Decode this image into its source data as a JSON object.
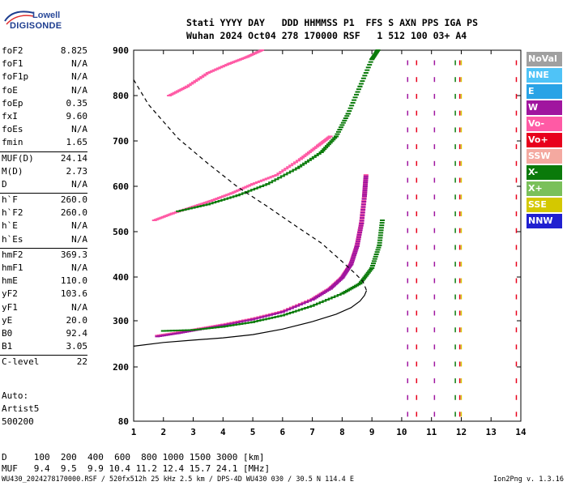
{
  "logo": {
    "line1": "Lowell",
    "line2": "DIGISONDE"
  },
  "header": {
    "row1": "Stati YYYY DAY   DDD HHMMSS P1  FFS S AXN PPS IGA PS",
    "row2": "Wuhan 2024 Oct04 278 170000 RSF   1 512 100 03+ A4"
  },
  "params": {
    "group1": [
      {
        "key": "foF2",
        "value": "8.825"
      },
      {
        "key": "foF1",
        "value": "N/A"
      },
      {
        "key": "foF1p",
        "value": "N/A"
      },
      {
        "key": "foE",
        "value": "N/A"
      },
      {
        "key": "foEp",
        "value": "0.35"
      },
      {
        "key": "fxI",
        "value": "9.60"
      },
      {
        "key": "foEs",
        "value": "N/A"
      },
      {
        "key": "fmin",
        "value": "1.65"
      }
    ],
    "group2": [
      {
        "key": "MUF(D)",
        "value": "24.14"
      },
      {
        "key": "M(D)",
        "value": "2.73"
      },
      {
        "key": "D",
        "value": "N/A"
      }
    ],
    "group3": [
      {
        "key": "h`F",
        "value": "260.0"
      },
      {
        "key": "h`F2",
        "value": "260.0"
      },
      {
        "key": "h`E",
        "value": "N/A"
      },
      {
        "key": "h`Es",
        "value": "N/A"
      }
    ],
    "group4": [
      {
        "key": "hmF2",
        "value": "369.3"
      },
      {
        "key": "hmF1",
        "value": "N/A"
      },
      {
        "key": "hmE",
        "value": "110.0"
      },
      {
        "key": "yF2",
        "value": "103.6"
      },
      {
        "key": "yF1",
        "value": "N/A"
      },
      {
        "key": "yE",
        "value": "20.0"
      },
      {
        "key": "B0",
        "value": "92.4"
      },
      {
        "key": "B1",
        "value": "3.05"
      }
    ],
    "group5": [
      {
        "key": "C-level",
        "value": "22"
      }
    ]
  },
  "notes": [
    "Auto:",
    "Artist5",
    "500200"
  ],
  "muf_table": {
    "row1": "D     100  200  400  600  800 1000 1500 3000 [km]",
    "row2": "MUF   9.4  9.5  9.9 10.4 11.2 12.4 15.7 24.1 [MHz]"
  },
  "footer": {
    "left": "WU430_2024278170000.RSF / 520fx512h 25 kHz 2.5 km / DPS-4D WU430 030 / 30.5 N 114.4 E",
    "right": "Ion2Png v. 1.3.16"
  },
  "legend": [
    {
      "label": "NoVal",
      "color": "#a0a0a0"
    },
    {
      "label": "NNE",
      "color": "#4fc3f7"
    },
    {
      "label": "E",
      "color": "#29a3e6"
    },
    {
      "label": "W",
      "color": "#a0159f"
    },
    {
      "label": "Vo-",
      "color": "#ff5aa5"
    },
    {
      "label": "Vo+",
      "color": "#e8001c"
    },
    {
      "label": "SSW",
      "color": "#f4a9a0"
    },
    {
      "label": "X-",
      "color": "#0a7a0a"
    },
    {
      "label": "X+",
      "color": "#7ac05a"
    },
    {
      "label": "SSE",
      "color": "#d4c800"
    },
    {
      "label": "NNW",
      "color": "#2020d0"
    }
  ],
  "chart_data": {
    "type": "scatter",
    "xlim": [
      1,
      14
    ],
    "ylim_label": "virtual height (km), nonlinear axis",
    "x_ticks": [
      "1",
      "2",
      "3",
      "4",
      "5",
      "6",
      "7",
      "8",
      "9",
      "10",
      "11",
      "12",
      "13",
      "14"
    ],
    "y_ticks": [
      "80",
      "200",
      "300",
      "400",
      "500",
      "600",
      "700",
      "800",
      "900"
    ],
    "y_tick_values": [
      80,
      200,
      300,
      400,
      500,
      600,
      700,
      800,
      900
    ],
    "series": [
      {
        "name": "Vo-",
        "color": "#ff5aa5",
        "points": [
          [
            1.8,
            268
          ],
          [
            2.5,
            275
          ],
          [
            3.2,
            283
          ],
          [
            4,
            292
          ],
          [
            5,
            305
          ],
          [
            6,
            322
          ],
          [
            7,
            350
          ],
          [
            7.6,
            375
          ],
          [
            8,
            400
          ],
          [
            8.3,
            430
          ],
          [
            8.5,
            470
          ],
          [
            8.65,
            520
          ],
          [
            8.75,
            580
          ],
          [
            8.8,
            625
          ]
        ]
      },
      {
        "name": "W",
        "color": "#a0159f",
        "points": [
          [
            1.8,
            266
          ],
          [
            2.5,
            273
          ],
          [
            3.2,
            281
          ],
          [
            4,
            290
          ],
          [
            5,
            303
          ],
          [
            6,
            320
          ],
          [
            7,
            348
          ],
          [
            7.6,
            373
          ],
          [
            8,
            398
          ],
          [
            8.3,
            428
          ],
          [
            8.5,
            468
          ],
          [
            8.65,
            518
          ],
          [
            8.75,
            578
          ],
          [
            8.8,
            622
          ]
        ]
      },
      {
        "name": "X-",
        "color": "#0a7a0a",
        "points": [
          [
            2,
            278
          ],
          [
            3,
            280
          ],
          [
            4,
            287
          ],
          [
            5,
            297
          ],
          [
            6,
            312
          ],
          [
            7,
            334
          ],
          [
            8,
            362
          ],
          [
            8.6,
            385
          ],
          [
            9,
            420
          ],
          [
            9.25,
            470
          ],
          [
            9.35,
            525
          ]
        ]
      },
      {
        "name": "Vo- (2F)",
        "color": "#ff5aa5",
        "points": [
          [
            1.7,
            525
          ],
          [
            2.3,
            540
          ],
          [
            3,
            555
          ],
          [
            3.6,
            568
          ],
          [
            4.3,
            585
          ],
          [
            5,
            605
          ],
          [
            5.8,
            625
          ],
          [
            6.6,
            660
          ],
          [
            7.2,
            690
          ],
          [
            7.6,
            710
          ]
        ]
      },
      {
        "name": "X- (2F)",
        "color": "#0a7a0a",
        "points": [
          [
            2.5,
            545
          ],
          [
            3.5,
            560
          ],
          [
            4.5,
            580
          ],
          [
            5.5,
            605
          ],
          [
            6.5,
            640
          ],
          [
            7.3,
            675
          ],
          [
            7.8,
            710
          ],
          [
            8.2,
            760
          ],
          [
            8.6,
            820
          ],
          [
            9,
            880
          ],
          [
            9.2,
            900
          ]
        ]
      },
      {
        "name": "Vo- (3F)",
        "color": "#ff5aa5",
        "points": [
          [
            2.2,
            800
          ],
          [
            2.8,
            820
          ],
          [
            3.5,
            850
          ],
          [
            4.2,
            870
          ],
          [
            4.8,
            885
          ],
          [
            5.3,
            900
          ]
        ]
      }
    ],
    "profile": {
      "name": "true-height",
      "style": "solid",
      "points": [
        [
          1,
          245
        ],
        [
          2,
          253
        ],
        [
          3,
          258
        ],
        [
          4,
          263
        ],
        [
          5,
          270
        ],
        [
          6,
          282
        ],
        [
          7,
          298
        ],
        [
          7.8,
          315
        ],
        [
          8.3,
          330
        ],
        [
          8.6,
          345
        ],
        [
          8.75,
          358
        ],
        [
          8.82,
          369
        ]
      ]
    },
    "dashed": {
      "name": "dashed",
      "style": "dashed",
      "points": [
        [
          1,
          835
        ],
        [
          1.5,
          780
        ],
        [
          2.5,
          705
        ],
        [
          3.5,
          650
        ],
        [
          4.5,
          598
        ],
        [
          5.5,
          555
        ],
        [
          6.5,
          510
        ],
        [
          7.3,
          475
        ],
        [
          7.9,
          440
        ],
        [
          8.4,
          410
        ],
        [
          8.7,
          390
        ],
        [
          8.82,
          369
        ]
      ]
    }
  }
}
